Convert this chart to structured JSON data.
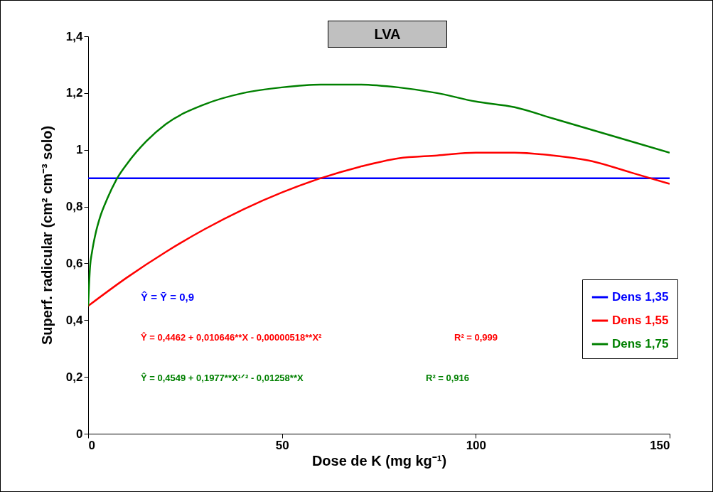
{
  "chart_data": {
    "type": "line",
    "title": "LVA",
    "xlabel": "Dose de K (mg kg⁻¹)",
    "ylabel": "Superf. radicular (cm² cm⁻³ solo)",
    "xlim": [
      0,
      150
    ],
    "xticks": [
      0,
      50,
      100,
      150
    ],
    "ylim": [
      0,
      1.4
    ],
    "yticks": [
      0,
      {
        "value": 0.2,
        "label": "0,2"
      },
      {
        "value": 0.4,
        "label": "0,4"
      },
      {
        "value": 0.6,
        "label": "0,6"
      },
      {
        "value": 0.8,
        "label": "0,8"
      },
      1,
      {
        "value": 1.2,
        "label": "1,2"
      },
      {
        "value": 1.4,
        "label": "1,4"
      }
    ],
    "legend": "right",
    "series": [
      {
        "name": "Dens 1,35",
        "color": "#0000ff",
        "x": [
          0,
          150
        ],
        "values": [
          0.9,
          0.9
        ]
      },
      {
        "name": "Dens 1,55",
        "color": "#ff0000",
        "x": [
          0,
          10,
          20,
          30,
          40,
          50,
          60,
          70,
          80,
          90,
          100,
          110,
          120,
          130,
          140,
          150
        ],
        "values": [
          0.45,
          0.55,
          0.64,
          0.72,
          0.79,
          0.85,
          0.9,
          0.94,
          0.97,
          0.98,
          0.99,
          0.99,
          0.98,
          0.96,
          0.92,
          0.88
        ]
      },
      {
        "name": "Dens 1,75",
        "color": "#008000",
        "x": [
          0,
          0.5,
          1,
          2,
          3,
          5,
          7.5,
          10,
          15,
          20,
          30,
          40,
          50,
          60,
          70,
          80,
          90,
          100,
          110,
          120,
          130,
          140,
          150
        ],
        "values": [
          0.45,
          0.59,
          0.64,
          0.71,
          0.76,
          0.83,
          0.9,
          0.95,
          1.03,
          1.09,
          1.16,
          1.2,
          1.22,
          1.23,
          1.23,
          1.22,
          1.2,
          1.17,
          1.15,
          1.11,
          1.07,
          1.03,
          0.99
        ]
      }
    ],
    "annotations": [
      "Ŷ = Ȳ = 0,9",
      "Ŷ = 0,4462 + 0,010646**X - 0,00000518**X²",
      "R² = 0,999",
      "Ŷ = 0,4549 + 0,1977**X¹ᐟ² - 0,01258**X",
      "R² = 0,916"
    ]
  }
}
